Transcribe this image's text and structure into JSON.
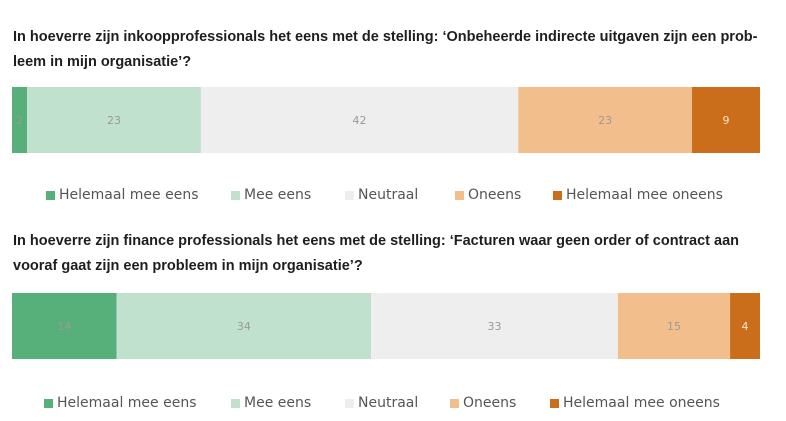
{
  "colors": {
    "helemaal_mee_eens": "#57b07a",
    "mee_eens": "#bfe1cd",
    "neutraal": "#eeeeee",
    "oneens": "#f2bf8c",
    "helemaal_mee_oneens": "#ca6e1c",
    "label_text": "#9a9a9a"
  },
  "chart_data": [
    {
      "type": "bar",
      "orientation": "horizontal-stacked-100",
      "title": "In hoeverre zijn inkoopprofessionals het eens met de stelling: ‘Onbeheerde indirecte uitgaven zijn een probleem in mijn organisatie’?",
      "title_lines": [
        "In hoeverre zijn inkoopprofessionals het eens met de stelling: ‘Onbeheerde indirecte uitgaven zijn een prob-",
        "leem in mijn organisatie’?"
      ],
      "series": [
        {
          "name": "Helemaal mee eens",
          "values": [
            2
          ]
        },
        {
          "name": "Mee eens",
          "values": [
            23
          ]
        },
        {
          "name": "Neutraal",
          "values": [
            42
          ]
        },
        {
          "name": "Oneens",
          "values": [
            23
          ]
        },
        {
          "name": "Helemaal mee oneens",
          "values": [
            9
          ]
        }
      ],
      "legend_position": "bottom"
    },
    {
      "type": "bar",
      "orientation": "horizontal-stacked-100",
      "title": "In hoeverre zijn finance professionals het eens met de stelling: ‘Facturen waar geen order of contract aan vooraf gaat zijn een probleem in mijn organisatie’?",
      "title_lines": [
        "In hoeverre zijn finance professionals het eens met de stelling: ‘Facturen waar geen order of contract aan",
        "vooraf gaat zijn een probleem in mijn organisatie’?"
      ],
      "series": [
        {
          "name": "Helemaal mee eens",
          "values": [
            14
          ]
        },
        {
          "name": "Mee eens",
          "values": [
            34
          ]
        },
        {
          "name": "Neutraal",
          "values": [
            33
          ]
        },
        {
          "name": "Oneens",
          "values": [
            15
          ]
        },
        {
          "name": "Helemaal mee oneens",
          "values": [
            4
          ]
        }
      ],
      "legend_position": "bottom"
    }
  ]
}
